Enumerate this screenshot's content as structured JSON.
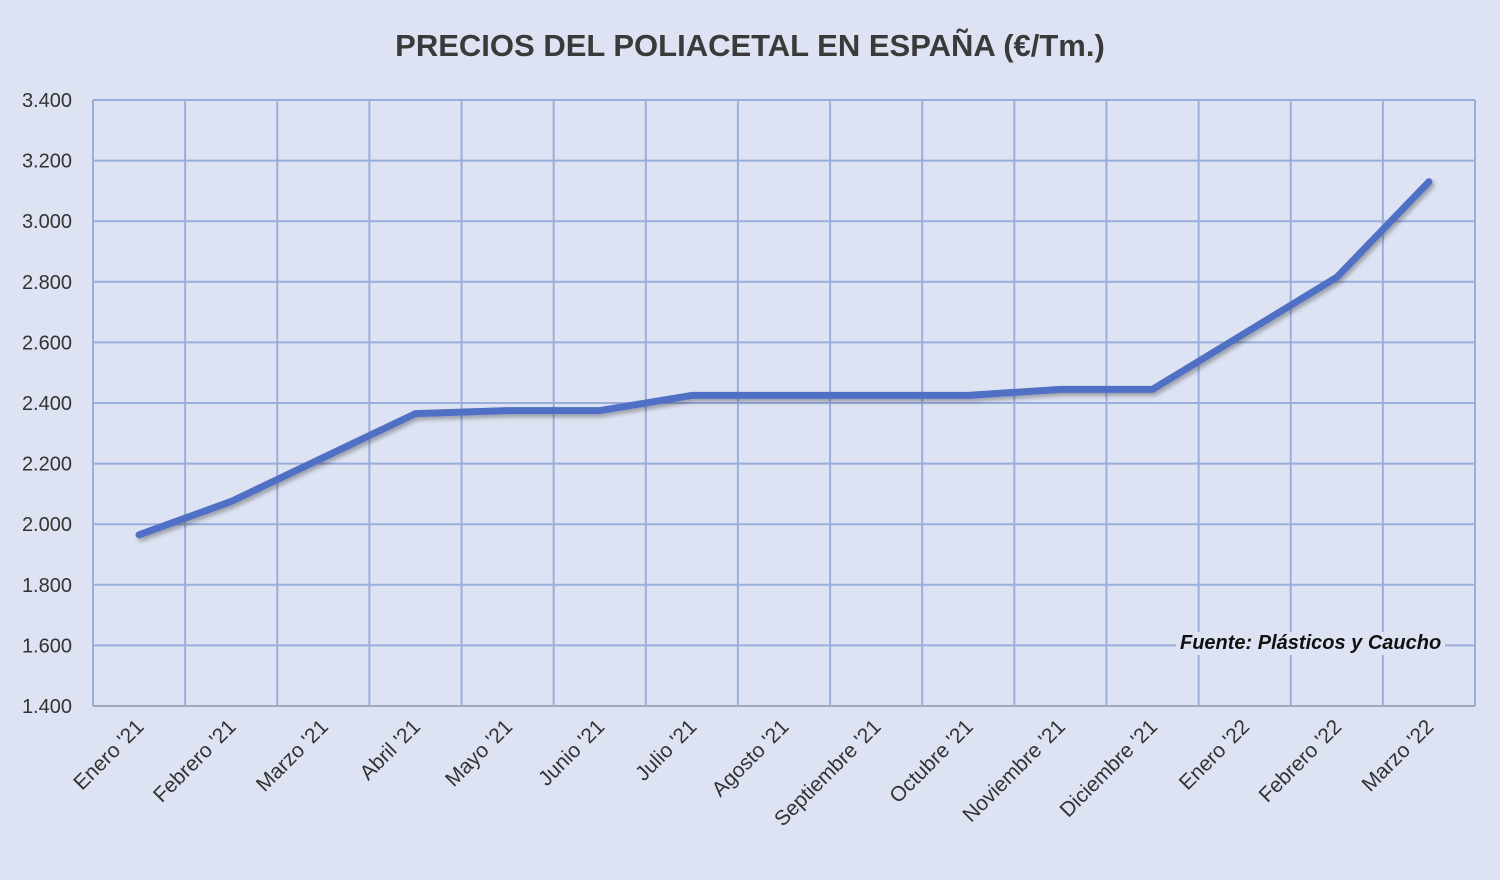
{
  "chart_data": {
    "type": "line",
    "title": "PRECIOS DEL POLIACETAL  EN ESPAÑA (€/Tm.)",
    "xlabel": "",
    "ylabel": "",
    "categories": [
      "Enero '21",
      "Febrero '21",
      "Marzo '21",
      "Abril '21",
      "Mayo '21",
      "Junio '21",
      "Julio '21",
      "Agosto '21",
      "Septiembre '21",
      "Octubre '21",
      "Noviembre '21",
      "Diciembre '21",
      "Enero '22",
      "Febrero '22",
      "Marzo '22"
    ],
    "series": [
      {
        "name": "Poliacetal",
        "values": [
          1965,
          2075,
          2220,
          2365,
          2375,
          2375,
          2425,
          2425,
          2425,
          2425,
          2445,
          2445,
          2630,
          2815,
          3130
        ]
      }
    ],
    "ylim": [
      1400,
      3400
    ],
    "yticks": [
      1400,
      1600,
      1800,
      2000,
      2200,
      2400,
      2600,
      2800,
      3000,
      3200,
      3400
    ],
    "ytick_labels": [
      "1.400",
      "1.600",
      "1.800",
      "2.000",
      "2.200",
      "2.400",
      "2.600",
      "2.800",
      "3.000",
      "3.200",
      "3.400"
    ],
    "grid": true,
    "line_color": "#4f6fc4",
    "annotation": "Fuente: Plásticos y Caucho"
  }
}
